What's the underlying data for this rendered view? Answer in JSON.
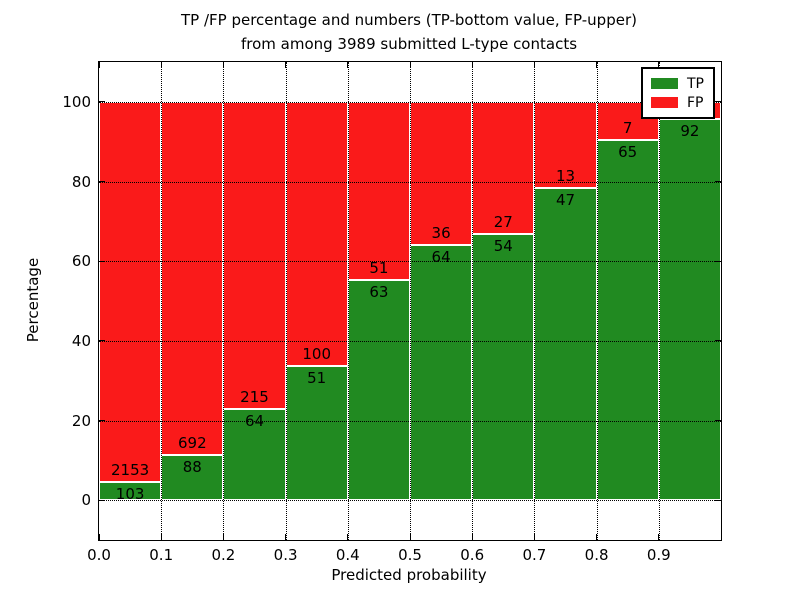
{
  "figure": {
    "title_line1": "TP /FP percentage and numbers (TP-bottom value, FP-upper)",
    "title_line2": "from among 3989 submitted L-type contacts"
  },
  "chart_data": {
    "type": "bar",
    "subtype": "stacked-percentage-histogram",
    "title": "TP /FP percentage and numbers (TP-bottom value, FP-upper)\nfrom among 3989 submitted L-type contacts",
    "xlabel": "Predicted probability",
    "ylabel": "Percentage",
    "xlim": [
      0.0,
      1.0
    ],
    "ylim": [
      -10,
      110
    ],
    "x_tick_labels": [
      "0.0",
      "0.1",
      "0.2",
      "0.3",
      "0.4",
      "0.5",
      "0.6",
      "0.7",
      "0.8",
      "0.9"
    ],
    "y_tick_values": [
      0,
      20,
      40,
      60,
      80,
      100
    ],
    "grid": true,
    "grid_style": "dotted",
    "bar_edge_color": "#ffffff",
    "colors": {
      "tp": "#218a21",
      "fp": "#fa1a1a"
    },
    "legend": {
      "position": "upper-right",
      "entries": [
        {
          "label": "TP",
          "color": "#218a21"
        },
        {
          "label": "FP",
          "color": "#fa1a1a"
        }
      ]
    },
    "label_note": "TP-bottom value, FP-upper; FP label of last bar hidden behind legend",
    "bars": [
      {
        "bin_start": 0.0,
        "bin_end": 0.1,
        "tp_count": 103,
        "fp_count": 2153,
        "tp_pct": 4.6
      },
      {
        "bin_start": 0.1,
        "bin_end": 0.2,
        "tp_count": 88,
        "fp_count": 692,
        "tp_pct": 11.3
      },
      {
        "bin_start": 0.2,
        "bin_end": 0.3,
        "tp_count": 64,
        "fp_count": 215,
        "tp_pct": 22.9
      },
      {
        "bin_start": 0.3,
        "bin_end": 0.4,
        "tp_count": 51,
        "fp_count": 100,
        "tp_pct": 33.8
      },
      {
        "bin_start": 0.4,
        "bin_end": 0.5,
        "tp_count": 63,
        "fp_count": 51,
        "tp_pct": 55.3
      },
      {
        "bin_start": 0.5,
        "bin_end": 0.6,
        "tp_count": 64,
        "fp_count": 36,
        "tp_pct": 64.0
      },
      {
        "bin_start": 0.6,
        "bin_end": 0.7,
        "tp_count": 54,
        "fp_count": 27,
        "tp_pct": 66.7
      },
      {
        "bin_start": 0.7,
        "bin_end": 0.8,
        "tp_count": 47,
        "fp_count": 13,
        "tp_pct": 78.3
      },
      {
        "bin_start": 0.8,
        "bin_end": 0.9,
        "tp_count": 65,
        "fp_count": 7,
        "tp_pct": 90.3
      },
      {
        "bin_start": 0.9,
        "bin_end": 1.0,
        "tp_count": 92,
        "fp_count": null,
        "tp_pct": 95.8
      }
    ]
  }
}
